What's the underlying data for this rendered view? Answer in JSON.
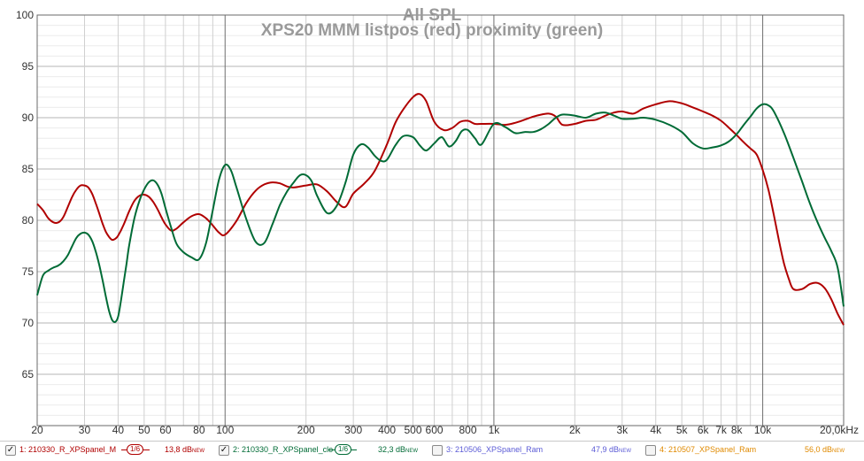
{
  "chart_data": {
    "type": "line",
    "title": "All SPL",
    "subtitle": "XPS20 MMM listpos (red) proximity (green)",
    "x_scale": "log",
    "xlim": [
      20,
      20000
    ],
    "ylim": [
      60,
      100
    ],
    "y_ticks": [
      "65",
      "70",
      "75",
      "80",
      "85",
      "90",
      "95",
      "100"
    ],
    "x_ticks": [
      {
        "v": 20,
        "label": "20"
      },
      {
        "v": 30,
        "label": "30"
      },
      {
        "v": 40,
        "label": "40"
      },
      {
        "v": 50,
        "label": "50"
      },
      {
        "v": 60,
        "label": "60"
      },
      {
        "v": 80,
        "label": "80"
      },
      {
        "v": 100,
        "label": "100"
      },
      {
        "v": 200,
        "label": "200"
      },
      {
        "v": 300,
        "label": "300"
      },
      {
        "v": 400,
        "label": "400"
      },
      {
        "v": 500,
        "label": "500"
      },
      {
        "v": 600,
        "label": "600"
      },
      {
        "v": 800,
        "label": "800"
      },
      {
        "v": 1000,
        "label": "1k"
      },
      {
        "v": 2000,
        "label": "2k"
      },
      {
        "v": 3000,
        "label": "3k"
      },
      {
        "v": 4000,
        "label": "4k"
      },
      {
        "v": 5000,
        "label": "5k"
      },
      {
        "v": 6000,
        "label": "6k"
      },
      {
        "v": 7000,
        "label": "7k"
      },
      {
        "v": 8000,
        "label": "8k"
      },
      {
        "v": 10000,
        "label": "10k"
      },
      {
        "v": 20000,
        "label": "20,0kHz"
      }
    ],
    "grid": true,
    "series": [
      {
        "name": "1: 210330_R_XPSpanel_M",
        "color": "#b00000",
        "x": [
          20,
          21,
          22,
          23,
          24,
          25,
          26,
          27,
          28,
          29,
          30,
          31,
          32,
          33,
          34,
          35,
          36,
          37,
          38,
          39,
          40,
          42,
          44,
          46,
          48,
          50,
          52,
          54,
          56,
          58,
          60,
          63,
          66,
          70,
          75,
          80,
          85,
          90,
          95,
          100,
          110,
          120,
          130,
          140,
          150,
          160,
          170,
          180,
          200,
          220,
          240,
          260,
          280,
          300,
          330,
          360,
          400,
          430,
          460,
          500,
          530,
          560,
          600,
          650,
          700,
          750,
          800,
          850,
          900,
          1000,
          1100,
          1200,
          1300,
          1400,
          1500,
          1600,
          1700,
          1800,
          2000,
          2200,
          2400,
          2600,
          2800,
          3000,
          3300,
          3600,
          4000,
          4500,
          5000,
          5500,
          6000,
          6500,
          7000,
          7500,
          8000,
          8500,
          9000,
          9500,
          10000,
          10500,
          11000,
          11500,
          12000,
          12500,
          13000,
          14000,
          15000,
          16000,
          17000,
          18000,
          19000,
          20000
        ],
        "y": [
          81.6,
          81.0,
          80.2,
          79.8,
          79.8,
          80.3,
          81.3,
          82.3,
          83.0,
          83.4,
          83.4,
          83.2,
          82.6,
          81.7,
          80.7,
          79.7,
          78.9,
          78.4,
          78.1,
          78.2,
          78.5,
          79.6,
          80.9,
          81.9,
          82.4,
          82.5,
          82.3,
          81.8,
          81.1,
          80.3,
          79.6,
          79.0,
          79.2,
          79.8,
          80.4,
          80.6,
          80.2,
          79.5,
          78.8,
          78.6,
          79.9,
          81.7,
          82.9,
          83.5,
          83.7,
          83.6,
          83.3,
          83.2,
          83.4,
          83.5,
          82.8,
          81.8,
          81.3,
          82.6,
          83.6,
          84.8,
          87.4,
          89.5,
          90.8,
          92.0,
          92.3,
          91.6,
          89.6,
          88.8,
          89.0,
          89.6,
          89.7,
          89.4,
          89.4,
          89.4,
          89.3,
          89.5,
          89.8,
          90.1,
          90.3,
          90.4,
          90.1,
          89.3,
          89.4,
          89.7,
          89.8,
          90.2,
          90.5,
          90.6,
          90.4,
          90.9,
          91.3,
          91.6,
          91.4,
          91.0,
          90.6,
          90.2,
          89.7,
          89.0,
          88.3,
          87.6,
          87.0,
          86.4,
          84.9,
          83.0,
          80.5,
          78.0,
          75.8,
          74.3,
          73.3,
          73.3,
          73.8,
          73.9,
          73.4,
          72.3,
          70.9,
          69.8
        ]
      },
      {
        "name": "2: 210330_R_XPSpanel_clo",
        "color": "#006b36",
        "x": [
          20,
          21,
          22,
          23,
          24,
          25,
          26,
          27,
          28,
          29,
          30,
          31,
          32,
          33,
          34,
          35,
          36,
          37,
          38,
          39,
          40,
          41,
          42,
          43,
          44,
          46,
          48,
          50,
          52,
          54,
          56,
          58,
          60,
          63,
          66,
          70,
          75,
          80,
          85,
          90,
          95,
          100,
          105,
          110,
          120,
          130,
          140,
          150,
          160,
          170,
          180,
          190,
          200,
          210,
          220,
          240,
          260,
          280,
          300,
          320,
          340,
          360,
          380,
          400,
          430,
          460,
          500,
          530,
          560,
          600,
          640,
          680,
          720,
          760,
          800,
          850,
          900,
          1000,
          1100,
          1200,
          1300,
          1400,
          1500,
          1600,
          1700,
          1800,
          2000,
          2200,
          2400,
          2600,
          2800,
          3000,
          3300,
          3600,
          4000,
          4500,
          5000,
          5500,
          6000,
          6500,
          7000,
          7500,
          8000,
          8500,
          9000,
          9500,
          10000,
          10500,
          11000,
          12000,
          13000,
          14000,
          15000,
          16000,
          17000,
          18000,
          19000,
          20000
        ],
        "y": [
          72.7,
          74.6,
          75.1,
          75.4,
          75.6,
          76.0,
          76.6,
          77.5,
          78.3,
          78.7,
          78.8,
          78.6,
          78.0,
          77.0,
          75.7,
          74.2,
          72.6,
          71.2,
          70.3,
          70.1,
          70.6,
          72.2,
          74.0,
          75.8,
          77.6,
          80.2,
          81.9,
          83.0,
          83.7,
          83.9,
          83.5,
          82.6,
          81.2,
          79.3,
          77.7,
          76.9,
          76.4,
          76.2,
          77.8,
          81.0,
          84.0,
          85.4,
          84.9,
          83.3,
          80.1,
          77.9,
          77.8,
          79.6,
          81.5,
          82.8,
          83.7,
          84.4,
          84.4,
          83.8,
          82.4,
          80.7,
          81.4,
          83.6,
          86.4,
          87.4,
          87.1,
          86.3,
          85.8,
          85.9,
          87.3,
          88.2,
          88.1,
          87.3,
          86.8,
          87.5,
          88.1,
          87.2,
          87.7,
          88.7,
          88.8,
          88.0,
          87.4,
          89.4,
          89.1,
          88.5,
          88.6,
          88.6,
          88.9,
          89.4,
          90.0,
          90.3,
          90.2,
          90.0,
          90.4,
          90.5,
          90.2,
          89.9,
          89.9,
          90.0,
          89.8,
          89.3,
          88.6,
          87.5,
          87.0,
          87.1,
          87.3,
          87.7,
          88.4,
          89.3,
          90.1,
          90.9,
          91.3,
          91.2,
          90.6,
          88.5,
          86.1,
          83.8,
          81.6,
          79.8,
          78.3,
          77.0,
          75.4,
          71.6
        ]
      }
    ]
  },
  "legend": [
    {
      "checked": true,
      "check_glyph": "✓",
      "name": "1: 210330_R_XPSpanel_M",
      "smoothing": "1/6",
      "level": "13,8 dB",
      "new": "NEW",
      "color": "#b00000"
    },
    {
      "checked": true,
      "check_glyph": "✓",
      "name": "2: 210330_R_XPSpanel_clo",
      "smoothing": "1/6",
      "level": "32,3 dB",
      "new": "NEW",
      "color": "#006b36"
    },
    {
      "checked": false,
      "check_glyph": "",
      "name": "3: 210506_XPSpanel_Ram",
      "smoothing": "",
      "level": "47,9 dB",
      "new": "NEW",
      "color": "#5b5bd6"
    },
    {
      "checked": false,
      "check_glyph": "",
      "name": "4: 210507_XPSpanel_Ram",
      "smoothing": "",
      "level": "56,0 dB",
      "new": "NEW",
      "color": "#e08a00"
    }
  ]
}
